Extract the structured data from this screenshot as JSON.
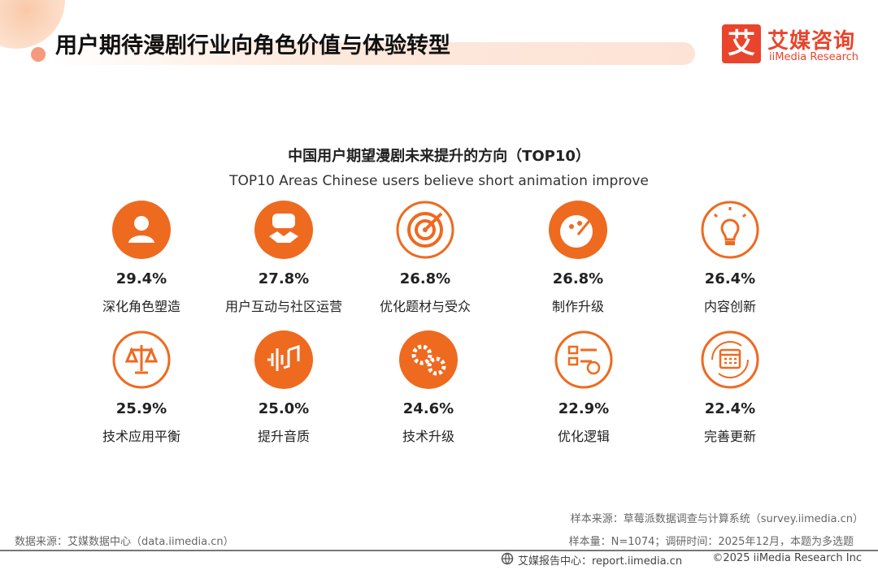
{
  "header": {
    "title": "用户期待漫剧行业向角色价值与体验转型",
    "logo_mark": "艾",
    "logo_cn": "艾媒咨询",
    "logo_en": "iiMedia Research"
  },
  "title": "中国用户期望漫剧未来提升的方向（TOP10）",
  "subtitle": "TOP10 Areas Chinese users believe short animation improve",
  "items": [
    {
      "value": "29.4%",
      "label": "深化角色塑造"
    },
    {
      "value": "27.8%",
      "label": "用户互动与社区运营"
    },
    {
      "value": "26.8%",
      "label": "优化题材与受众"
    },
    {
      "value": "26.8%",
      "label": "制作升级"
    },
    {
      "value": "26.4%",
      "label": "内容创新"
    },
    {
      "value": "25.9%",
      "label": "技术应用平衡"
    },
    {
      "value": "25.0%",
      "label": "提升音质"
    },
    {
      "value": "24.6%",
      "label": "技术升级"
    },
    {
      "value": "22.9%",
      "label": "优化逻辑"
    },
    {
      "value": "22.4%",
      "label": "完善更新"
    }
  ],
  "footer": {
    "sample_source": "样本来源：草莓派数据调查与计算系统（survey.iimedia.cn）",
    "sample_size": "样本量：N=1074；调研时间：2025年12月，本题为多选题",
    "data_source": "数据来源：艾媒数据中心（data.iimedia.cn）",
    "report_center": "艾媒报告中心：report.iimedia.cn",
    "copyright": "©2025  iiMedia Research  Inc"
  }
}
